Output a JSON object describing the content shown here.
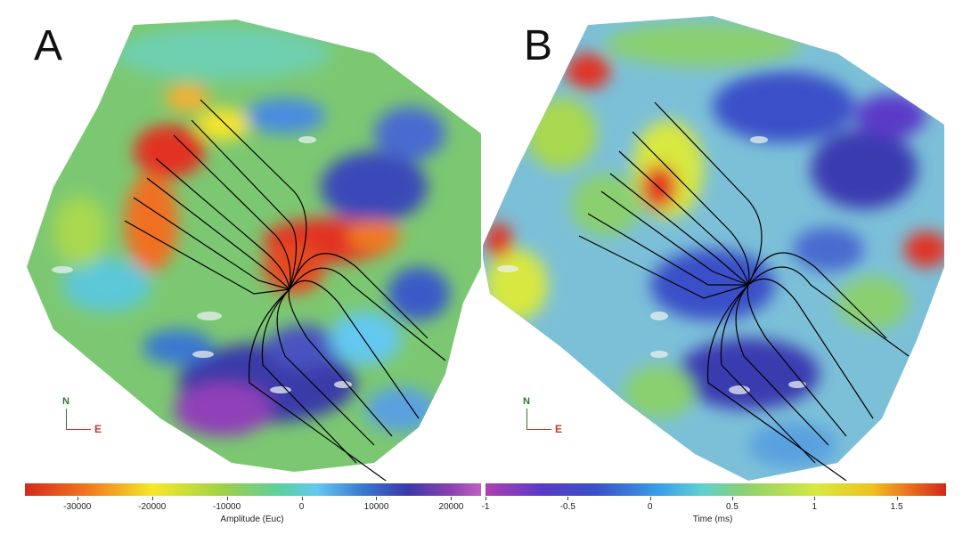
{
  "panels": [
    {
      "label": "A"
    },
    {
      "label": "B"
    }
  ],
  "compass": {
    "north": "N",
    "east": "E"
  },
  "colorbars": [
    {
      "title": "Amplitude (Euc)",
      "ticks": [
        "-30000",
        "-20000",
        "-10000",
        "0",
        "10000",
        "20000"
      ],
      "tick_values": [
        -30000,
        -20000,
        -10000,
        0,
        10000,
        20000
      ],
      "range": [
        -37000,
        24000
      ],
      "colors": [
        "#d42a1a",
        "#f6e82a",
        "#9bd04a",
        "#64c8f0",
        "#3a3aa8",
        "#c060c0"
      ]
    },
    {
      "title": "Time (ms)",
      "ticks": [
        "-1",
        "-0.5",
        "0",
        "0.5",
        "1",
        "1.5"
      ],
      "tick_values": [
        -1,
        -0.5,
        0,
        0.5,
        1,
        1.5
      ],
      "range": [
        -1,
        1.8
      ],
      "colors": [
        "#b040b0",
        "#3a50c8",
        "#3aa0e8",
        "#8ad070",
        "#d8e840",
        "#d02a1a"
      ]
    }
  ]
}
